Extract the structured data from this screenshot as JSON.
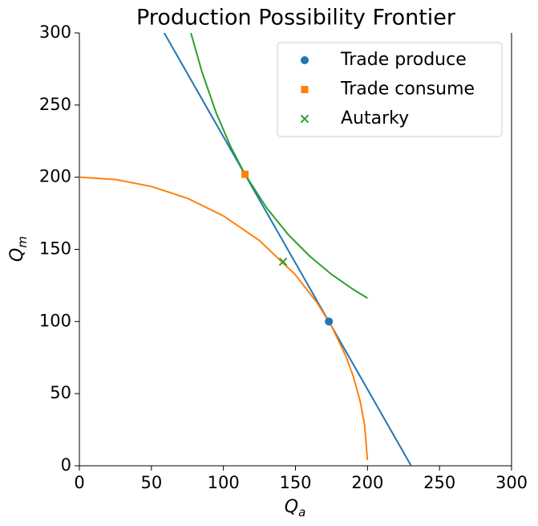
{
  "chart_data": {
    "type": "line",
    "title": "Production Possibility Frontier",
    "xlabel": {
      "symbol": "Q",
      "subscript": "a"
    },
    "ylabel": {
      "symbol": "Q",
      "subscript": "m"
    },
    "xlim": [
      0,
      300
    ],
    "ylim": [
      0,
      300
    ],
    "xticks": [
      0,
      50,
      100,
      150,
      200,
      250,
      300
    ],
    "yticks": [
      0,
      50,
      100,
      150,
      200,
      250,
      300
    ],
    "legend": "upper right",
    "lines": [
      {
        "color": "#1f77b4",
        "x": [
          58.9,
          230.3
        ],
        "values": [
          300,
          0
        ]
      },
      {
        "color": "#ff7f0e",
        "x": [
          0,
          25,
          50,
          75,
          100,
          125,
          150,
          165,
          175,
          185,
          190,
          195,
          198,
          199.96
        ],
        "values": [
          200,
          198.4,
          193.6,
          185.4,
          173.2,
          156.1,
          132.3,
          113.0,
          96.8,
          76.0,
          62.4,
          44.4,
          28.2,
          4.0
        ]
      },
      {
        "color": "#2ca02c",
        "x": [
          77.43,
          85,
          95,
          105,
          115,
          130,
          145,
          160,
          175,
          190,
          200
        ],
        "values": [
          300,
          273.3,
          244.5,
          221.2,
          202,
          178.7,
          160.2,
          145.2,
          132.7,
          122.3,
          116.2
        ]
      }
    ],
    "series": [
      {
        "name": "Trade produce",
        "color": "#1f77b4",
        "marker": "circle",
        "x": [
          173.2
        ],
        "values": [
          100
        ]
      },
      {
        "name": "Trade consume",
        "color": "#ff7f0e",
        "marker": "square",
        "x": [
          115
        ],
        "values": [
          202
        ]
      },
      {
        "name": "Autarky",
        "color": "#2ca02c",
        "marker": "x",
        "x": [
          141.4
        ],
        "values": [
          141.4
        ]
      }
    ]
  }
}
